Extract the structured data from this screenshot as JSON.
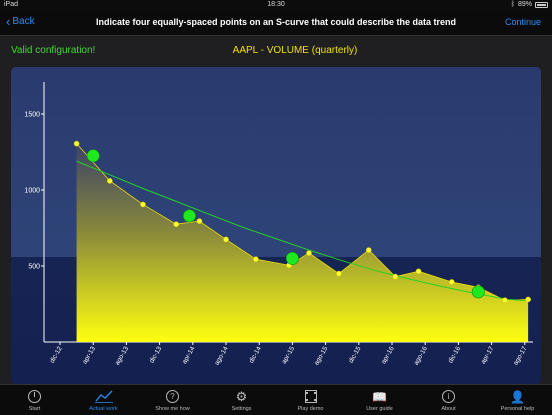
{
  "statusbar": {
    "device": "iPad",
    "time": "18:30",
    "battery": "89%"
  },
  "navbar": {
    "back_label": "Back",
    "title": "Indicate four equally-spaced points on an S-curve that could describe the data trend",
    "continue_label": "Continue"
  },
  "status_message": "Valid configuration!",
  "colors": {
    "accent_blue": "#2d8cf0",
    "valid_green": "#3cdc2e",
    "series_yellow": "#f0e000",
    "curve_green": "#22d422",
    "marker_green": "#1ee81e",
    "plot_top": "#2a3a6e",
    "plot_bottom": "#162454"
  },
  "chart_data": {
    "type": "area",
    "title": "AAPL - VOLUME (quarterly)",
    "xlabel": "",
    "ylabel": "",
    "ylim": [
      0,
      1700
    ],
    "yticks": [
      500,
      1000,
      1500
    ],
    "xticks": [
      "dic-12",
      "apr-13",
      "ago-13",
      "dic-13",
      "apr-14",
      "ago-14",
      "dic-14",
      "apr-15",
      "ago-15",
      "dic-15",
      "apr-16",
      "ago-16",
      "dic-16",
      "apr-17",
      "ago-17"
    ],
    "xlim": [
      -0.5,
      14.7
    ],
    "series": [
      {
        "x": [
          0.5,
          1.5,
          2.5,
          3.5,
          4.2,
          5,
          5.9,
          6.9,
          7.5,
          8.4,
          9.3,
          10.1,
          10.8,
          11.8,
          12.6,
          13.4,
          14.1
        ],
        "values": [
          1305,
          1060,
          905,
          775,
          795,
          675,
          545,
          505,
          585,
          450,
          605,
          430,
          465,
          395,
          360,
          275,
          280
        ]
      }
    ],
    "trend_curve": {
      "x": [
        0.5,
        1.5,
        2.5,
        3.5,
        4.5,
        5.5,
        6.5,
        7.5,
        8.5,
        9.5,
        10.5,
        11.5,
        12.5,
        13.5,
        14.1
      ],
      "values": [
        1190,
        1100,
        1010,
        925,
        840,
        755,
        680,
        605,
        535,
        470,
        415,
        365,
        320,
        280,
        272
      ]
    },
    "selected_points": {
      "x": [
        1.0,
        3.9,
        7.0,
        12.6
      ],
      "values": [
        1225,
        830,
        550,
        330
      ]
    }
  },
  "tabs": [
    {
      "label": "Start",
      "icon": "power-icon"
    },
    {
      "label": "Actual work",
      "icon": "chart-icon"
    },
    {
      "label": "Show me how",
      "icon": "question-icon"
    },
    {
      "label": "Settings",
      "icon": "gear-icon"
    },
    {
      "label": "Play demo",
      "icon": "film-icon"
    },
    {
      "label": "User guide",
      "icon": "book-icon"
    },
    {
      "label": "About",
      "icon": "info-icon"
    },
    {
      "label": "Personal help",
      "icon": "person-icon"
    }
  ],
  "active_tab": 1
}
